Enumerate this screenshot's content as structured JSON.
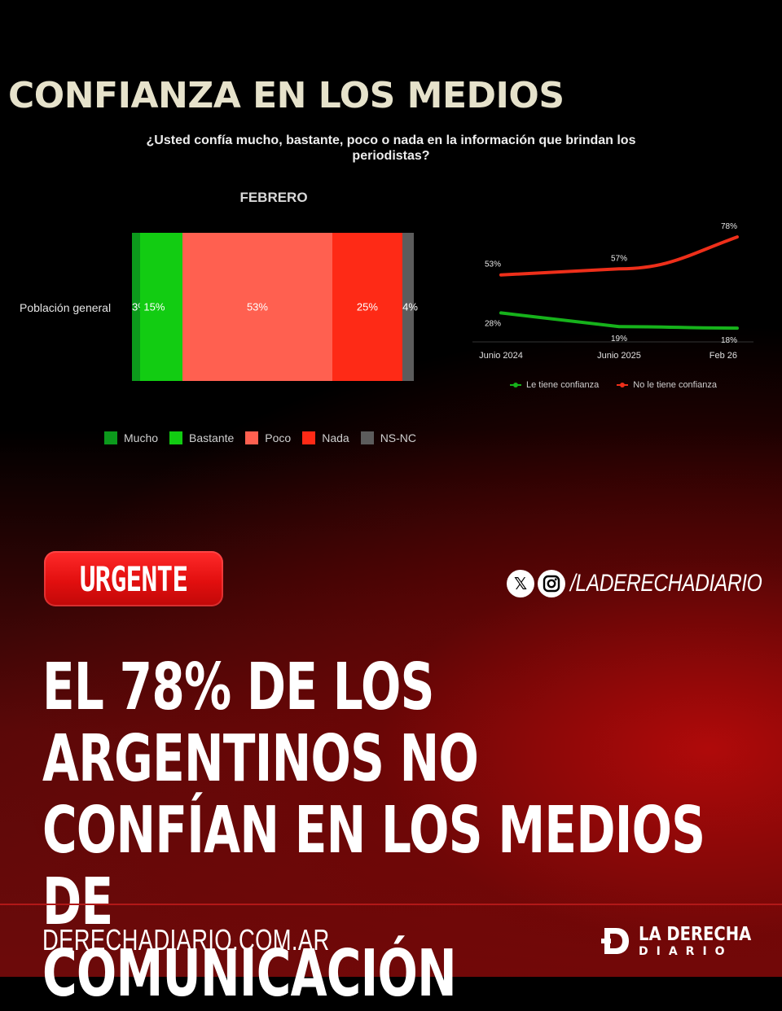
{
  "page": {
    "title": "CONFIANZA EN LOS MEDIOS",
    "question": "¿Usted confía mucho, bastante, poco o nada en la información que brindan los periodistas?"
  },
  "chart_data": [
    {
      "type": "bar",
      "orientation": "horizontal-stacked",
      "title": "FEBRERO",
      "categories": [
        "Población general"
      ],
      "series": [
        {
          "name": "Mucho",
          "values": [
            3
          ],
          "label": "3%",
          "color": "#0c9a1c"
        },
        {
          "name": "Bastante",
          "values": [
            15
          ],
          "label": "15%",
          "color": "#12cc12"
        },
        {
          "name": "Poco",
          "values": [
            53
          ],
          "label": "53%",
          "color": "#ff6050"
        },
        {
          "name": "Nada",
          "values": [
            25
          ],
          "label": "25%",
          "color": "#fe2a16"
        },
        {
          "name": "NS-NC",
          "values": [
            4
          ],
          "label": "4%",
          "color": "#5c5c5c"
        }
      ],
      "legend_position": "bottom"
    },
    {
      "type": "line",
      "x": [
        "Junio 2024",
        "Junio 2025",
        "Feb 26"
      ],
      "series": [
        {
          "name": "Le tiene confianza",
          "values": [
            28,
            19,
            18
          ],
          "labels": [
            "28%",
            "19%",
            "18%"
          ],
          "color": "#16b21b"
        },
        {
          "name": "No le tiene confianza",
          "values": [
            53,
            57,
            78
          ],
          "labels": [
            "53%",
            "57%",
            "78%"
          ],
          "color": "#ee2f1a"
        }
      ],
      "ylim": [
        10,
        85
      ],
      "grid": false,
      "legend_position": "bottom"
    }
  ],
  "banner": {
    "badge": "URGENTE",
    "social_x": "𝕏",
    "handle": "/LADERECHADIARIO",
    "headline": [
      "EL 78% DE LOS ARGENTINOS NO",
      "CONFÍAN EN LOS MEDIOS DE",
      "COMUNICACIÓN"
    ]
  },
  "footer": {
    "site": "DERECHADIARIO.COM.AR",
    "brand_top": "LA DERECHA",
    "brand_bottom": "DIARIO"
  }
}
